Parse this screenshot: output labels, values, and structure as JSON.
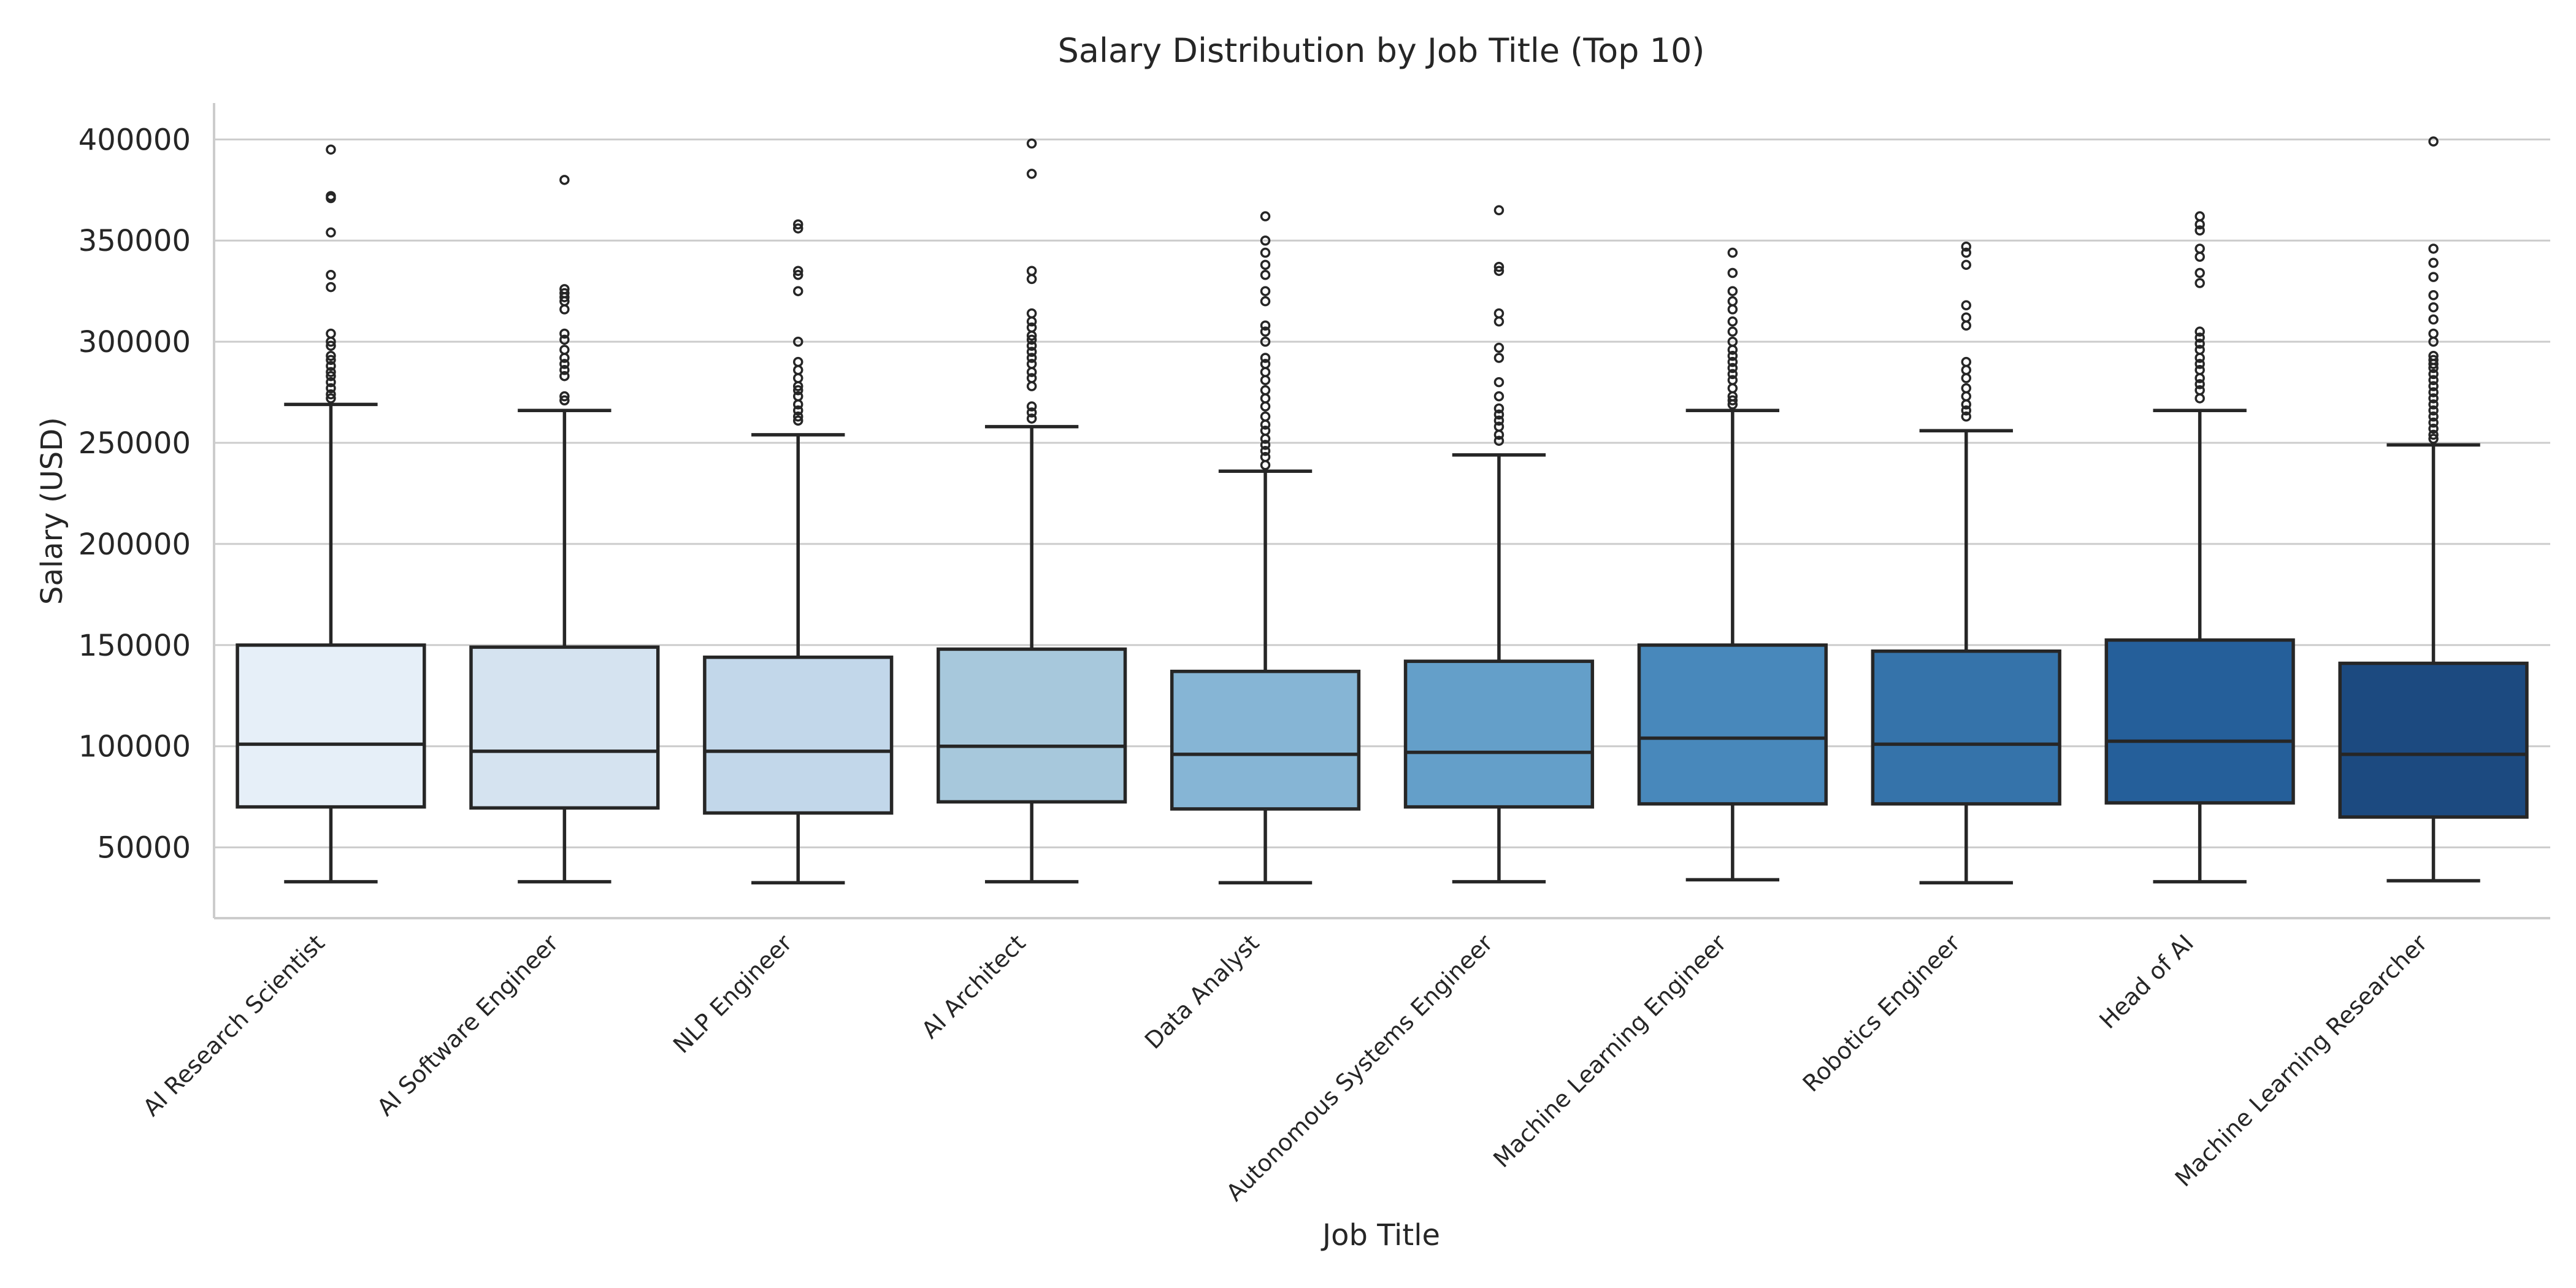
{
  "chart_data": {
    "type": "box",
    "title": "Salary Distribution by Job Title (Top 10)",
    "xlabel": "Job Title",
    "ylabel": "Salary (USD)",
    "ylim": [
      15000,
      418000
    ],
    "yticks": [
      50000,
      100000,
      150000,
      200000,
      250000,
      300000,
      350000,
      400000
    ],
    "grid": true,
    "palette": "Blues",
    "categories": [
      "AI Research Scientist",
      "AI Software Engineer",
      "NLP Engineer",
      "AI Architect",
      "Data Analyst",
      "Autonomous Systems Engineer",
      "Machine Learning Engineer",
      "Robotics Engineer",
      "Head of AI",
      "Machine Learning Researcher"
    ],
    "colors": [
      "#e6eff8",
      "#d5e3f0",
      "#c2d7ea",
      "#a7c8dc",
      "#86b5d5",
      "#649fc9",
      "#4888bb",
      "#3573aa",
      "#255f9a",
      "#1c4a80"
    ],
    "boxes": [
      {
        "whislo": 33000,
        "q1": 70000,
        "med": 101000,
        "q3": 150000,
        "whishi": 269000,
        "fliers": [
          395000,
          372000,
          371000,
          354000,
          333000,
          327000,
          304000,
          300000,
          298000,
          293000,
          291000,
          288000,
          285000,
          283000,
          280000,
          277000,
          274000,
          272000
        ]
      },
      {
        "whislo": 33000,
        "q1": 69500,
        "med": 97500,
        "q3": 149000,
        "whishi": 266000,
        "fliers": [
          380000,
          326000,
          324000,
          322000,
          320000,
          316000,
          304000,
          301000,
          296000,
          292000,
          289000,
          286000,
          283000,
          273000,
          271000
        ]
      },
      {
        "whislo": 32500,
        "q1": 67000,
        "med": 97500,
        "q3": 144000,
        "whishi": 254000,
        "fliers": [
          358000,
          356000,
          335000,
          333000,
          325000,
          300000,
          290000,
          286000,
          282000,
          278000,
          276000,
          273000,
          269000,
          266000,
          263000,
          261000
        ]
      },
      {
        "whislo": 33000,
        "q1": 72500,
        "med": 100000,
        "q3": 148000,
        "whishi": 258000,
        "fliers": [
          398000,
          383000,
          335000,
          331000,
          314000,
          310000,
          307000,
          303000,
          301000,
          298000,
          295000,
          292000,
          289000,
          285000,
          282000,
          278000,
          268000,
          265000,
          262000
        ]
      },
      {
        "whislo": 32500,
        "q1": 69000,
        "med": 96000,
        "q3": 137000,
        "whishi": 236000,
        "fliers": [
          362000,
          350000,
          344000,
          338000,
          333000,
          325000,
          320000,
          308000,
          305000,
          300000,
          292000,
          289000,
          285000,
          281000,
          276000,
          272000,
          268000,
          263000,
          259000,
          256000,
          252000,
          249000,
          246000,
          243000,
          239000
        ]
      },
      {
        "whislo": 33000,
        "q1": 70000,
        "med": 97000,
        "q3": 142000,
        "whishi": 244000,
        "fliers": [
          365000,
          337000,
          335000,
          314000,
          310000,
          297000,
          292000,
          280000,
          273000,
          267000,
          264000,
          261000,
          258000,
          254000,
          251000
        ]
      },
      {
        "whislo": 34000,
        "q1": 71500,
        "med": 104000,
        "q3": 150000,
        "whishi": 266000,
        "fliers": [
          344000,
          334000,
          325000,
          320000,
          316000,
          310000,
          305000,
          300000,
          296000,
          293000,
          290000,
          287000,
          284000,
          281000,
          277000,
          273000,
          271000,
          269000
        ]
      },
      {
        "whislo": 32500,
        "q1": 71500,
        "med": 101000,
        "q3": 147000,
        "whishi": 256000,
        "fliers": [
          347000,
          344000,
          338000,
          318000,
          312000,
          308000,
          290000,
          286000,
          282000,
          277000,
          273000,
          269000,
          266000,
          263000
        ]
      },
      {
        "whislo": 33000,
        "q1": 72000,
        "med": 102500,
        "q3": 152500,
        "whishi": 266000,
        "fliers": [
          362000,
          358000,
          355000,
          346000,
          342000,
          334000,
          329000,
          305000,
          302000,
          299000,
          296000,
          292000,
          289000,
          286000,
          282000,
          279000,
          276000,
          272000
        ]
      },
      {
        "whislo": 33500,
        "q1": 65000,
        "med": 96000,
        "q3": 141000,
        "whishi": 249000,
        "fliers": [
          399000,
          346000,
          339000,
          332000,
          323000,
          317000,
          311000,
          304000,
          300000,
          293000,
          291000,
          289000,
          287000,
          284000,
          281000,
          278000,
          275000,
          272000,
          269000,
          266000,
          263000,
          260000,
          257000,
          254000,
          252000
        ]
      }
    ]
  }
}
